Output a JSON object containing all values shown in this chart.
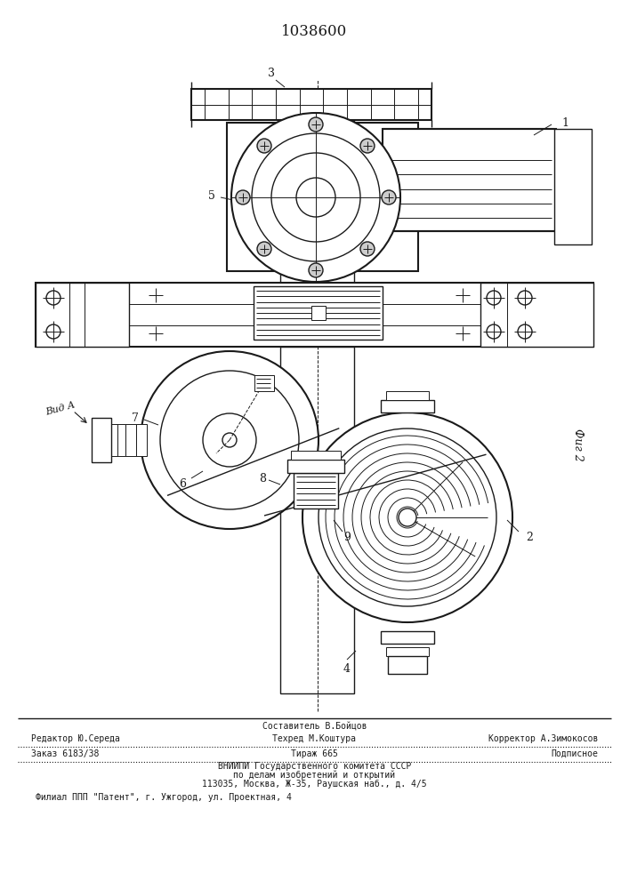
{
  "title": "1038600",
  "title_fontsize": 11,
  "background_color": "#ffffff",
  "drawing_color": "#1a1a1a",
  "fig_label": "Фиг 2",
  "view_label": "Вид А",
  "footer_line1": "Составитель В.Бойцов",
  "footer_line2_left": "Редактор Ю.Середа",
  "footer_line2_mid": "Техред М.Коштура",
  "footer_line2_right": "Корректор А.Зимокосов",
  "footer_line3_left": "Заказ 6183/38",
  "footer_line3_mid": "Тираж 665",
  "footer_line3_right": "Подписное",
  "footer_line4": "ВНИИПИ Государственного комитета СССР",
  "footer_line5": "по делам изобретений и открытий",
  "footer_line6": "113035, Москва, Ж-35, Раушская наб., д. 4/5",
  "footer_line7": "Филиал ППП \"Патент\", г. Ужгород, ул. Проектная, 4"
}
